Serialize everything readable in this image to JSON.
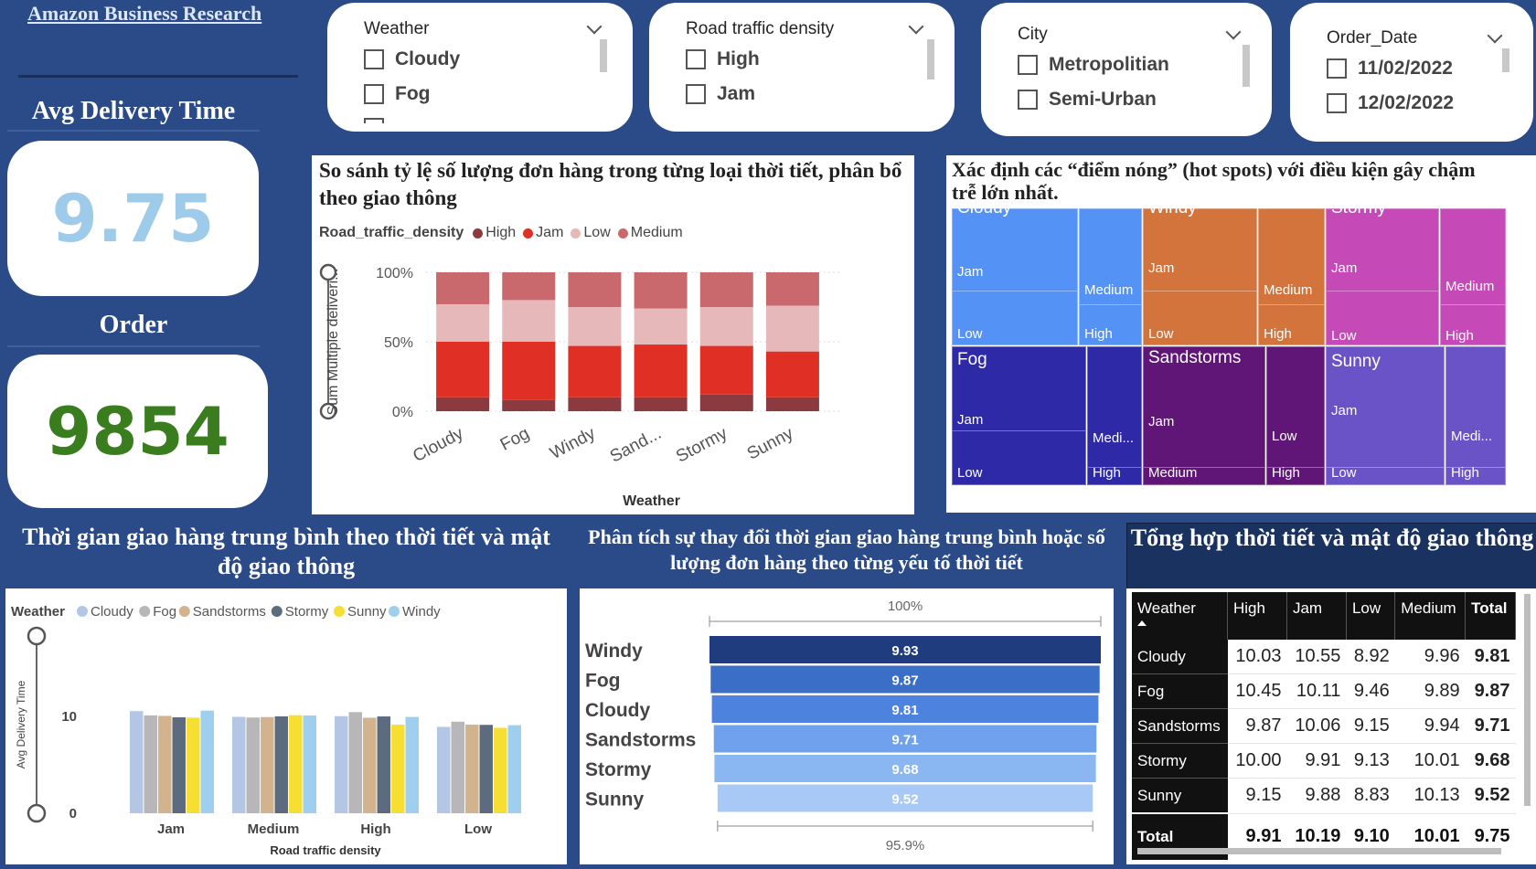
{
  "brand": "Amazon Business Research",
  "kpis": {
    "avg_label": "Avg Delivery Time",
    "avg_value": "9.75",
    "order_label": "Order",
    "order_value": "9854"
  },
  "slicers": {
    "weather": {
      "title": "Weather",
      "options": [
        "Cloudy",
        "Fog"
      ]
    },
    "traffic": {
      "title": "Road traffic density",
      "options": [
        "High",
        "Jam"
      ]
    },
    "city": {
      "title": "City",
      "options": [
        "Metropolitian",
        "Semi-Urban"
      ]
    },
    "order_date": {
      "title": "Order_Date",
      "options": [
        "11/02/2022",
        "12/02/2022"
      ]
    }
  },
  "titles": {
    "bottom_left": "Thời gian giao hàng trung bình theo thời tiết và mật độ giao thông",
    "bottom_mid": "Phân tích sự thay đổi thời gian giao hàng trung bình hoặc số lượng đơn hàng theo từng yếu tố thời tiết",
    "bottom_right": "Tổng hợp thời tiết và mật độ giao thông"
  },
  "colors": {
    "High": "#8b3a3f",
    "Jam": "#e03025",
    "Low": "#e6b8b9",
    "Medium": "#c9686d",
    "Cloudy": "#b3c6e3",
    "Fog": "#b7b7b7",
    "Sandstorms": "#d2b38e",
    "Stormy": "#5d6b7e",
    "Sunny": "#f7de32",
    "Windy": "#9fcfee"
  },
  "chart_data": [
    {
      "type": "bar",
      "stacked": "100%",
      "title": "So sánh tỷ lệ số lượng đơn hàng trong từng loại thời tiết, phân bổ theo giao thông",
      "legend_title": "Road_traffic_density",
      "legend_position": "top-left",
      "xlabel": "Weather",
      "ylabel": "Sum Multiple deliveri...",
      "categories": [
        "Cloudy",
        "Fog",
        "Windy",
        "Sand...",
        "Stormy",
        "Sunny"
      ],
      "yticks": [
        "0%",
        "50%",
        "100%"
      ],
      "series": [
        {
          "name": "High",
          "values": [
            10,
            8,
            10,
            10,
            12,
            10
          ]
        },
        {
          "name": "Jam",
          "values": [
            40,
            42,
            37,
            38,
            35,
            33
          ]
        },
        {
          "name": "Low",
          "values": [
            27,
            30,
            28,
            26,
            28,
            33
          ]
        },
        {
          "name": "Medium",
          "values": [
            23,
            20,
            25,
            26,
            25,
            24
          ]
        }
      ]
    },
    {
      "type": "treemap",
      "title": "Xác định các “điểm nóng” (hot spots) với điều kiện gây chậm trễ lớn nhất.",
      "groups": [
        {
          "name": "Cloudy",
          "color": "#5592f5",
          "cells": [
            "Jam",
            "Low",
            "Medium",
            "High"
          ]
        },
        {
          "name": "Windy",
          "color": "#d3743d",
          "cells": [
            "Jam",
            "Low",
            "Medium",
            "High"
          ]
        },
        {
          "name": "Stormy",
          "color": "#c54ab8",
          "cells": [
            "Jam",
            "Low",
            "Medium",
            "High"
          ]
        },
        {
          "name": "Fog",
          "color": "#2e29a7",
          "cells": [
            "Jam",
            "Low",
            "Medi...",
            "High"
          ]
        },
        {
          "name": "Sandstorms",
          "color": "#5f1676",
          "cells": [
            "Jam",
            "Medium",
            "Low",
            "High"
          ]
        },
        {
          "name": "Sunny",
          "color": "#6a53c6",
          "cells": [
            "Jam",
            "Low",
            "Medi...",
            "High"
          ]
        }
      ]
    },
    {
      "type": "bar",
      "title": "",
      "legend_title": "Weather",
      "legend_position": "top-left",
      "xlabel": "Road traffic density",
      "ylabel": "Avg Delivery Time",
      "ylim": [
        0,
        18.5
      ],
      "yticks": [
        "0",
        "10"
      ],
      "categories": [
        "Jam",
        "Medium",
        "High",
        "Low"
      ],
      "series": [
        {
          "name": "Cloudy",
          "values": [
            10.55,
            9.96,
            10.03,
            8.92
          ]
        },
        {
          "name": "Fog",
          "values": [
            10.11,
            9.89,
            10.45,
            9.46
          ]
        },
        {
          "name": "Sandstorms",
          "values": [
            10.06,
            9.94,
            9.87,
            9.15
          ]
        },
        {
          "name": "Stormy",
          "values": [
            9.91,
            10.01,
            10.0,
            9.13
          ]
        },
        {
          "name": "Sunny",
          "values": [
            9.88,
            10.13,
            9.15,
            8.83
          ]
        },
        {
          "name": "Windy",
          "values": [
            10.6,
            10.1,
            9.95,
            9.1
          ]
        }
      ]
    },
    {
      "type": "funnel",
      "title": "",
      "top_label": "100%",
      "bottom_label": "95.9%",
      "categories": [
        "Windy",
        "Fog",
        "Cloudy",
        "Sandstorms",
        "Stormy",
        "Sunny"
      ],
      "values": [
        9.93,
        9.87,
        9.81,
        9.71,
        9.68,
        9.52
      ],
      "labels": [
        "9.93",
        "9.87",
        "9.81",
        "9.71",
        "9.68",
        "9.52"
      ],
      "colors": [
        "#1f3d7e",
        "#3b6fc7",
        "#4d83de",
        "#6fa1ec",
        "#8ab6f2",
        "#a8c9f6"
      ]
    },
    {
      "type": "table",
      "columns": [
        "Weather",
        "High",
        "Jam",
        "Low",
        "Medium",
        "Total"
      ],
      "rows": [
        [
          "Cloudy",
          "10.03",
          "10.55",
          "8.92",
          "9.96",
          "9.81"
        ],
        [
          "Fog",
          "10.45",
          "10.11",
          "9.46",
          "9.89",
          "9.87"
        ],
        [
          "Sandstorms",
          "9.87",
          "10.06",
          "9.15",
          "9.94",
          "9.71"
        ],
        [
          "Stormy",
          "10.00",
          "9.91",
          "9.13",
          "10.01",
          "9.68"
        ],
        [
          "Sunny",
          "9.15",
          "9.88",
          "8.83",
          "10.13",
          "9.52"
        ]
      ],
      "total": [
        "Total",
        "9.91",
        "10.19",
        "9.10",
        "10.01",
        "9.75"
      ]
    }
  ]
}
